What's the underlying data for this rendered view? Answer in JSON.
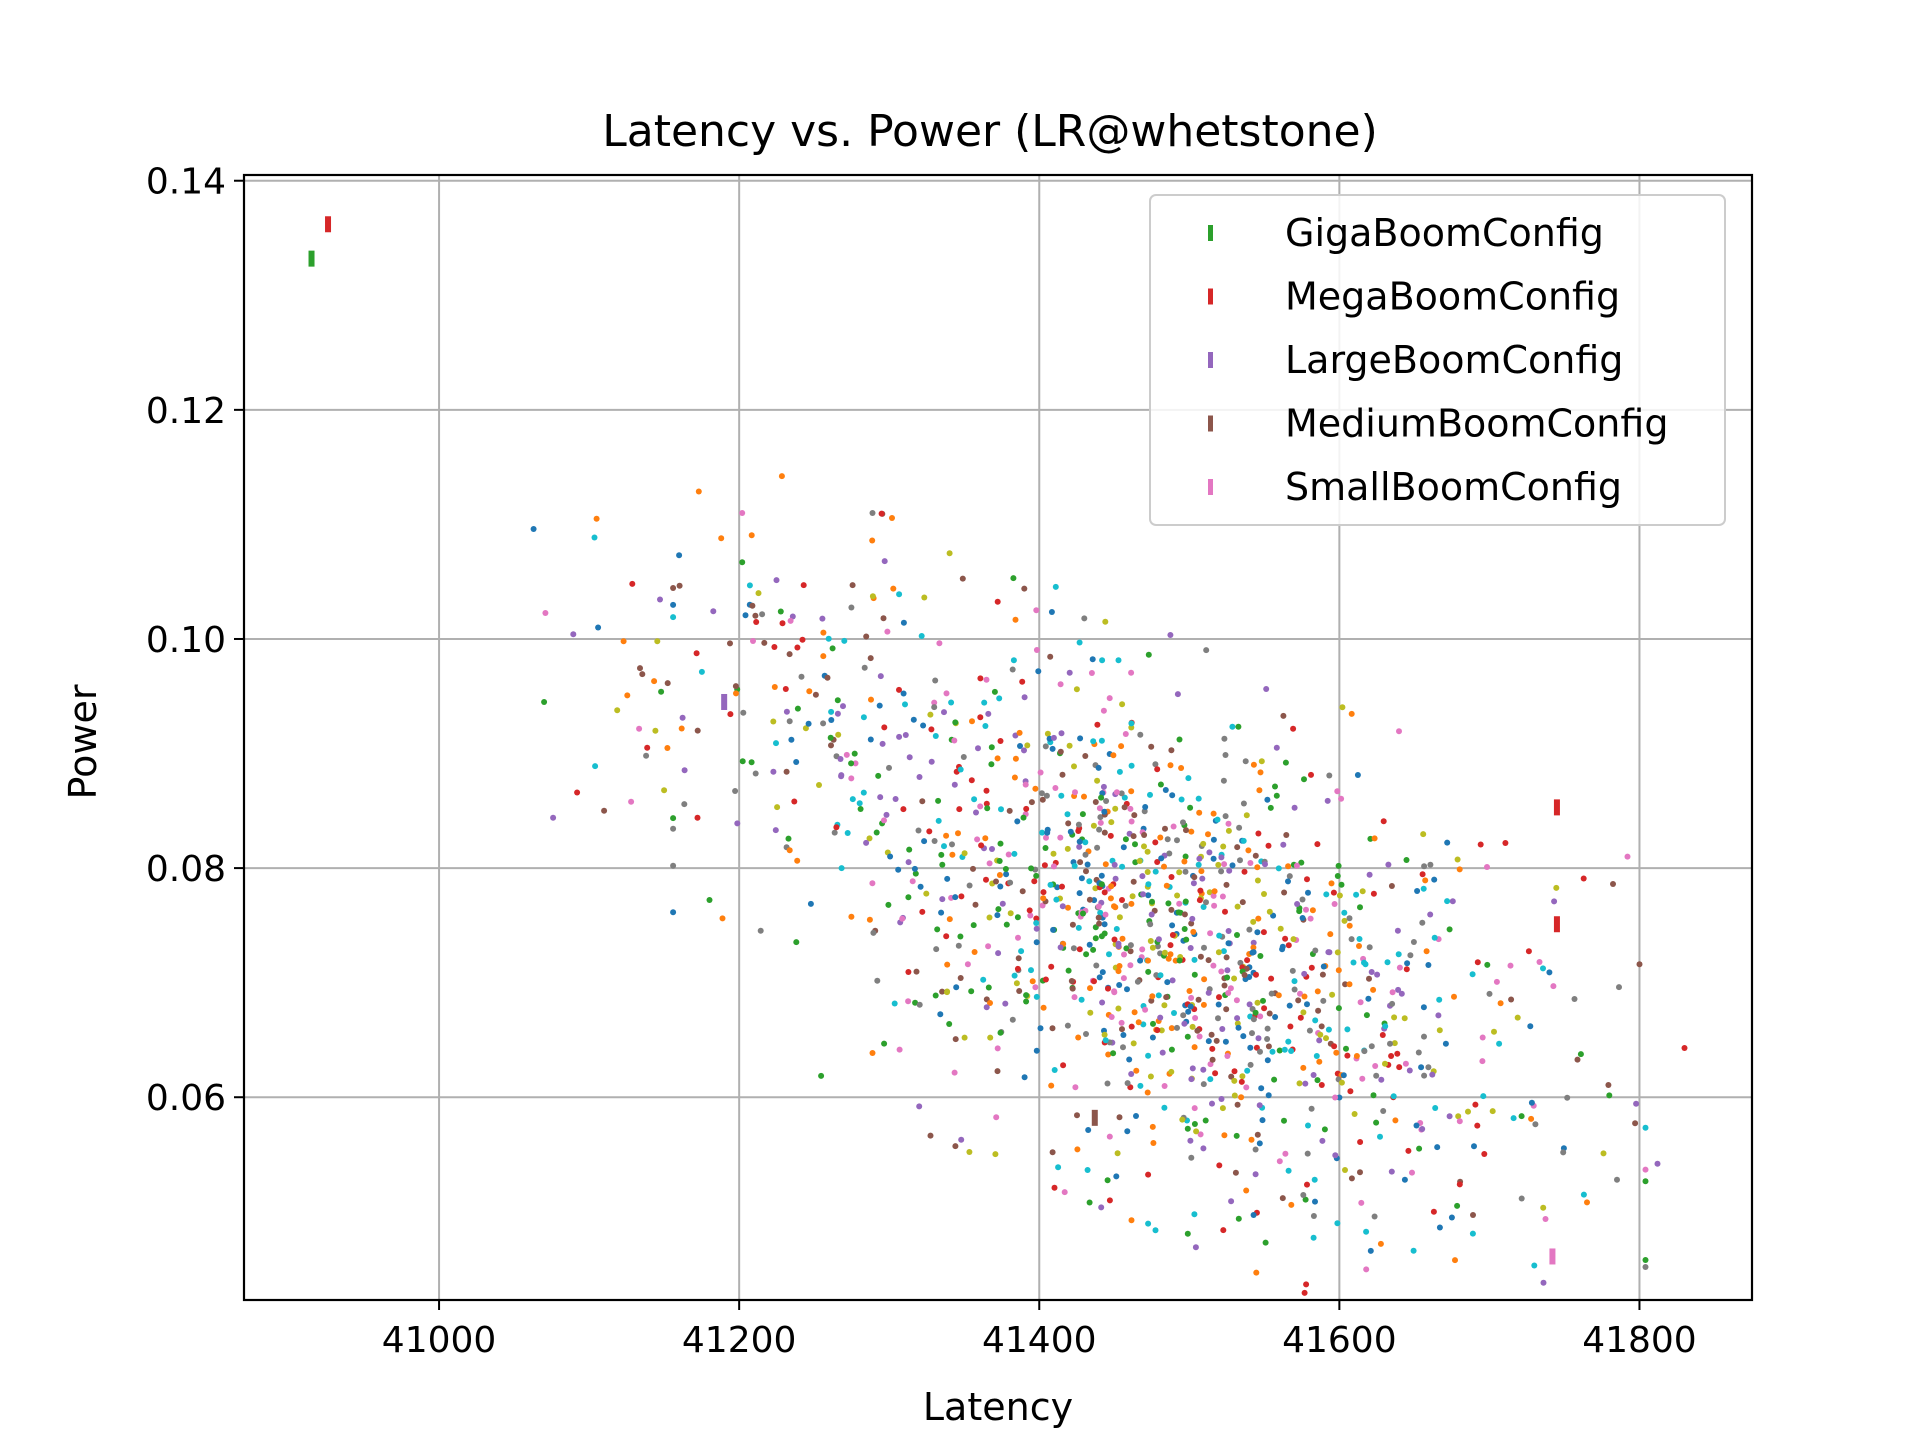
{
  "chart_data": {
    "type": "scatter",
    "title": "Latency vs. Power (LR@whetstone)",
    "xlabel": "Latency",
    "ylabel": "Power",
    "xlim": [
      40870,
      41875
    ],
    "ylim": [
      0.0423,
      0.1405
    ],
    "xticks": [
      41000,
      41200,
      41400,
      41600,
      41800
    ],
    "xtick_labels": [
      "41000",
      "41200",
      "41400",
      "41600",
      "41800"
    ],
    "yticks": [
      0.06,
      0.08,
      0.1,
      0.12,
      0.14
    ],
    "ytick_labels": [
      "0.06",
      "0.08",
      "0.10",
      "0.12",
      "0.14"
    ],
    "grid": true,
    "legend_position": "top-right",
    "series": [
      {
        "name": "GigaBoomConfig",
        "color": "#2ca02c",
        "marker": "vertical-line",
        "points": [
          [
            40915,
            0.1332
          ]
        ]
      },
      {
        "name": "MegaBoomConfig",
        "color": "#d62728",
        "marker": "vertical-line",
        "points": [
          [
            40926,
            0.1362
          ],
          [
            41745,
            0.0853
          ],
          [
            41745,
            0.0751
          ]
        ]
      },
      {
        "name": "LargeBoomConfig",
        "color": "#9467bd",
        "marker": "vertical-line",
        "points": [
          [
            41190,
            0.0945
          ]
        ]
      },
      {
        "name": "MediumBoomConfig",
        "color": "#8c564b",
        "marker": "vertical-line",
        "points": [
          [
            41437,
            0.0582
          ]
        ]
      },
      {
        "name": "SmallBoomConfig",
        "color": "#e377c2",
        "marker": "vertical-line",
        "points": [
          [
            41742,
            0.0461
          ]
        ]
      }
    ],
    "background_points": {
      "description_free": true,
      "palette": [
        "#1f77b4",
        "#ff7f0e",
        "#2ca02c",
        "#d62728",
        "#9467bd",
        "#8c564b",
        "#e377c2",
        "#7f7f7f",
        "#bcbd22",
        "#17becf"
      ],
      "clusters": [
        {
          "x_mean": 41480,
          "x_sd": 120,
          "y_mean": 0.0745,
          "y_sd": 0.0105,
          "slope": -5.5e-05,
          "count": 1350
        },
        {
          "x_mean": 41230,
          "x_sd": 60,
          "y_mean": 0.096,
          "y_sd": 0.006,
          "slope": 0,
          "count": 90
        }
      ],
      "fixed": [
        [
          41063,
          0.1096
        ],
        [
          41105,
          0.1105
        ],
        [
          41070,
          0.0945
        ],
        [
          41092,
          0.0866
        ],
        [
          41076,
          0.0844
        ],
        [
          41110,
          0.085
        ],
        [
          41128,
          0.0858
        ],
        [
          41138,
          0.0898
        ],
        [
          41150,
          0.0868
        ],
        [
          41104,
          0.0889
        ],
        [
          41106,
          0.101
        ],
        [
          41123,
          0.0998
        ],
        [
          41148,
          0.0954
        ],
        [
          41830,
          0.0643
        ],
        [
          41812,
          0.0542
        ],
        [
          41800,
          0.0716
        ],
        [
          41792,
          0.081
        ],
        [
          41785,
          0.0528
        ],
        [
          41776,
          0.0551
        ],
        [
          41763,
          0.0515
        ],
        [
          41160,
          0.1073
        ],
        [
          41188,
          0.1088
        ],
        [
          41202,
          0.1067
        ],
        [
          41243,
          0.1047
        ],
        [
          41297,
          0.1068
        ],
        [
          41390,
          0.1044
        ],
        [
          41398,
          0.1025
        ],
        [
          41430,
          0.1018
        ],
        [
          41444,
          0.1015
        ],
        [
          41689,
          0.0481
        ],
        [
          41675,
          0.0495
        ],
        [
          41568,
          0.0506
        ],
        [
          41533,
          0.0494
        ],
        [
          41663,
          0.05
        ],
        [
          41320,
          0.0592
        ]
      ]
    }
  }
}
